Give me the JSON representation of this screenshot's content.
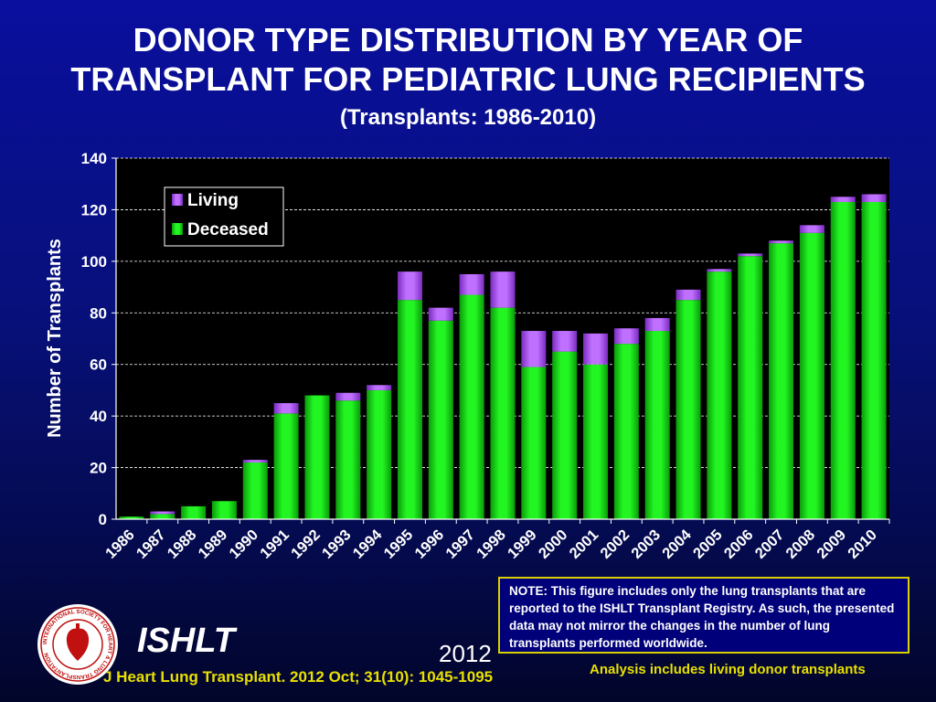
{
  "header": {
    "title_line1": "DONOR TYPE DISTRIBUTION BY YEAR OF",
    "title_line2": "TRANSPLANT FOR PEDIATRIC LUNG RECIPIENTS",
    "subtitle": "(Transplants: 1986-2010)"
  },
  "chart_data": {
    "type": "bar",
    "stacked": true,
    "title": "DONOR TYPE DISTRIBUTION BY YEAR OF TRANSPLANT FOR PEDIATRIC LUNG RECIPIENTS",
    "xlabel": "",
    "ylabel": "Number of Transplants",
    "ylim": [
      0,
      140
    ],
    "yticks": [
      0,
      20,
      40,
      60,
      80,
      100,
      120,
      140
    ],
    "grid": true,
    "legend_position": "top-left",
    "categories": [
      "1986",
      "1987",
      "1988",
      "1989",
      "1990",
      "1991",
      "1992",
      "1993",
      "1994",
      "1995",
      "1996",
      "1997",
      "1998",
      "1999",
      "2000",
      "2001",
      "2002",
      "2003",
      "2004",
      "2005",
      "2006",
      "2007",
      "2008",
      "2009",
      "2010"
    ],
    "series": [
      {
        "name": "Deceased",
        "color": "#10e010",
        "values": [
          1,
          2,
          5,
          7,
          22,
          41,
          48,
          46,
          50,
          85,
          77,
          87,
          82,
          59,
          65,
          60,
          68,
          73,
          85,
          96,
          102,
          107,
          111,
          123,
          123
        ]
      },
      {
        "name": "Living",
        "color": "#b04ef0",
        "values": [
          0,
          1,
          0,
          0,
          1,
          4,
          0,
          3,
          2,
          11,
          5,
          8,
          14,
          14,
          8,
          12,
          6,
          5,
          4,
          1,
          1,
          1,
          3,
          2,
          3
        ]
      }
    ]
  },
  "note": {
    "text": "NOTE: This figure includes only the lung transplants that are reported to the ISHLT Transplant Registry. As such, the presented data may not mirror the changes in the number of lung transplants performed worldwide."
  },
  "footer": {
    "org": "ISHLT",
    "year": "2012",
    "citation": "J Heart Lung Transplant.  2012 Oct; 31(10): 1045-1095",
    "analysis": "Analysis includes living donor transplants"
  },
  "logo": {
    "text": "INTERNATIONAL SOCIETY FOR HEART & LUNG TRANSPLANTATION"
  }
}
